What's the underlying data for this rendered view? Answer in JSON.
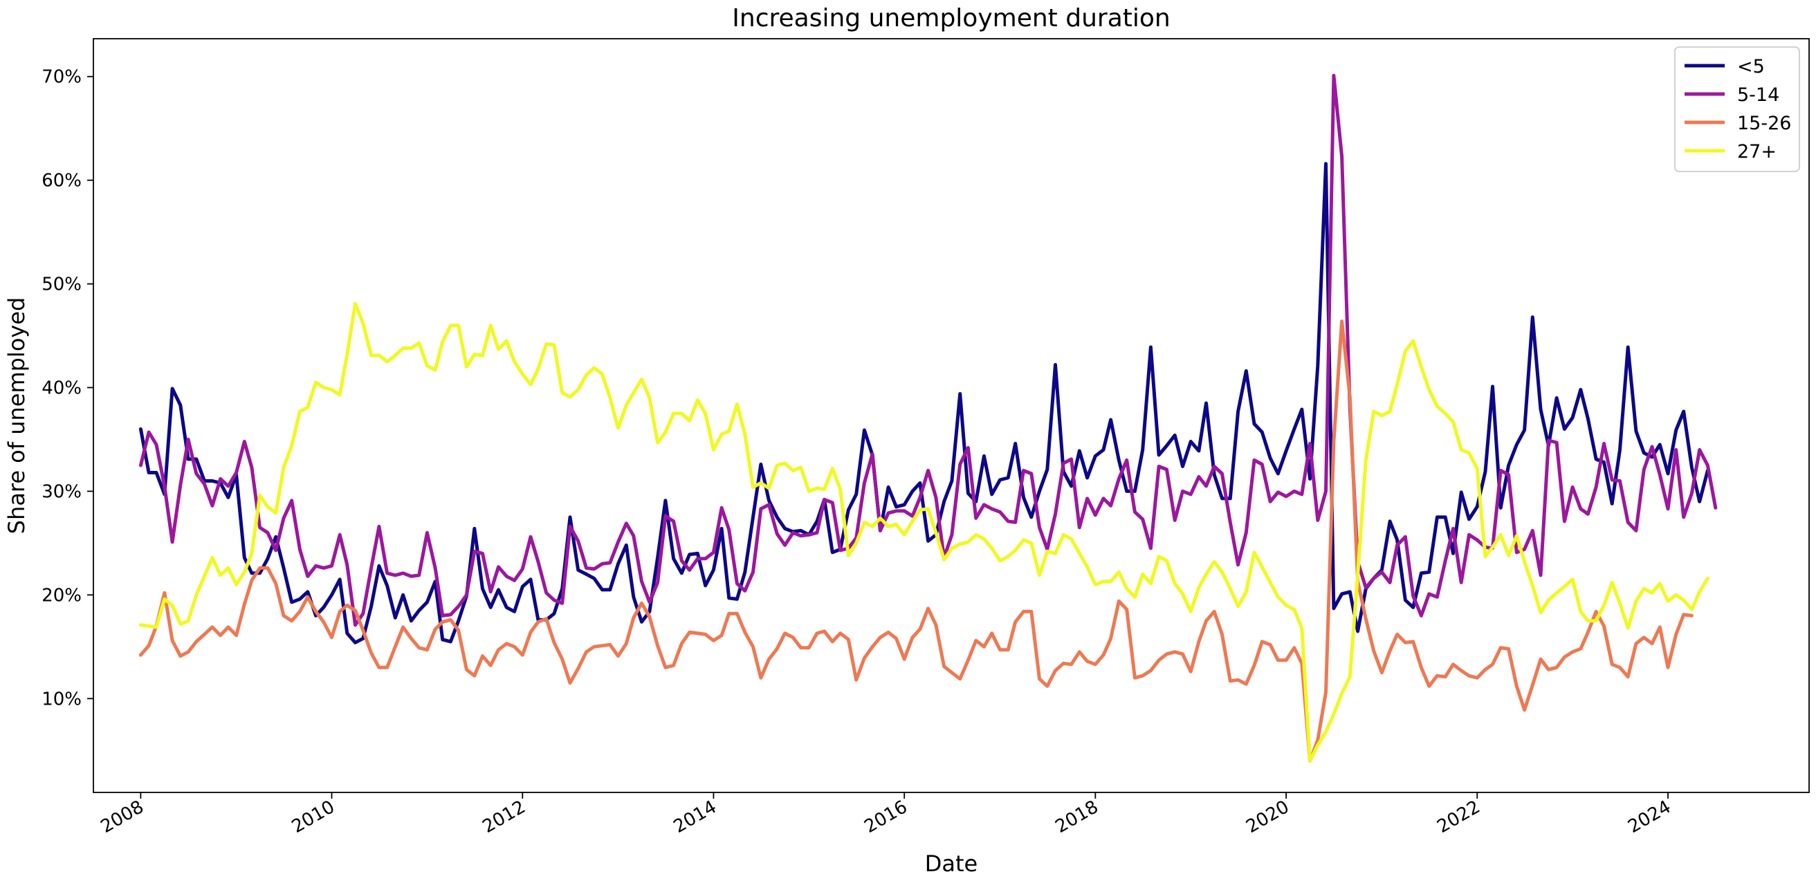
{
  "chart_data": {
    "type": "line",
    "title": "Increasing unemployment duration",
    "xlabel": "Date",
    "ylabel": "Share of unemployed",
    "x_range": [
      "2007-07-04",
      "2025-06-24"
    ],
    "x_ticks": [
      "2008-01-01",
      "2010-01-01",
      "2012-01-01",
      "2014-01-01",
      "2016-01-01",
      "2018-01-01",
      "2020-01-01",
      "2022-01-01",
      "2024-01-01"
    ],
    "x_tick_labels": [
      "2008",
      "2010",
      "2012",
      "2014",
      "2016",
      "2018",
      "2020",
      "2022",
      "2024"
    ],
    "ylim": [
      0.0095,
      0.7365
    ],
    "y_ticks": [
      0.1,
      0.2,
      0.3,
      0.4,
      0.5,
      0.6,
      0.7
    ],
    "y_tick_labels": [
      "10%",
      "20%",
      "30%",
      "40%",
      "50%",
      "60%",
      "70%"
    ],
    "grid": false,
    "legend_position": "top-right",
    "x_start": "2008-01",
    "x_frequency": "monthly",
    "series": [
      {
        "name": "<5",
        "color": "#0d0887",
        "values": [
          0.36,
          0.318,
          0.318,
          0.297,
          0.399,
          0.383,
          0.331,
          0.331,
          0.31,
          0.31,
          0.308,
          0.294,
          0.316,
          0.236,
          0.221,
          0.221,
          0.235,
          0.256,
          0.226,
          0.193,
          0.196,
          0.203,
          0.18,
          0.188,
          0.2,
          0.215,
          0.163,
          0.154,
          0.158,
          0.189,
          0.228,
          0.209,
          0.178,
          0.2,
          0.175,
          0.185,
          0.193,
          0.213,
          0.157,
          0.155,
          0.175,
          0.199,
          0.264,
          0.206,
          0.188,
          0.205,
          0.188,
          0.184,
          0.208,
          0.215,
          0.176,
          0.176,
          0.182,
          0.206,
          0.275,
          0.224,
          0.22,
          0.216,
          0.205,
          0.205,
          0.23,
          0.248,
          0.198,
          0.174,
          0.184,
          0.236,
          0.291,
          0.235,
          0.221,
          0.239,
          0.24,
          0.209,
          0.224,
          0.264,
          0.197,
          0.196,
          0.222,
          0.275,
          0.326,
          0.291,
          0.275,
          0.264,
          0.261,
          0.262,
          0.258,
          0.271,
          0.292,
          0.241,
          0.244,
          0.282,
          0.297,
          0.359,
          0.335,
          0.262,
          0.304,
          0.285,
          0.287,
          0.3,
          0.308,
          0.252,
          0.258,
          0.29,
          0.31,
          0.394,
          0.298,
          0.29,
          0.334,
          0.297,
          0.311,
          0.313,
          0.346,
          0.294,
          0.275,
          0.3,
          0.321,
          0.422,
          0.319,
          0.305,
          0.339,
          0.313,
          0.334,
          0.34,
          0.369,
          0.33,
          0.3,
          0.3,
          0.34,
          0.439,
          0.335,
          0.344,
          0.354,
          0.324,
          0.348,
          0.339,
          0.385,
          0.316,
          0.293,
          0.293,
          0.377,
          0.416,
          0.365,
          0.357,
          0.332,
          0.317,
          0.339,
          0.36,
          0.379,
          0.312,
          0.421,
          0.616,
          0.187,
          0.201,
          0.203,
          0.165,
          0.206,
          0.216,
          0.224,
          0.271,
          0.253,
          0.195,
          0.188,
          0.221,
          0.222,
          0.275,
          0.275,
          0.24,
          0.299,
          0.273,
          0.285,
          0.319,
          0.401,
          0.284,
          0.325,
          0.345,
          0.359,
          0.468,
          0.379,
          0.344,
          0.39,
          0.36,
          0.371,
          0.398,
          0.37,
          0.331,
          0.328,
          0.288,
          0.34,
          0.439,
          0.358,
          0.337,
          0.333,
          0.345,
          0.317,
          0.359,
          0.377,
          0.323,
          0.29,
          0.32
        ]
      },
      {
        "name": "5-14",
        "color": "#9c179e",
        "values": [
          0.325,
          0.357,
          0.345,
          0.305,
          0.251,
          0.306,
          0.35,
          0.317,
          0.307,
          0.286,
          0.312,
          0.305,
          0.318,
          0.348,
          0.323,
          0.265,
          0.26,
          0.243,
          0.274,
          0.291,
          0.244,
          0.218,
          0.228,
          0.226,
          0.228,
          0.258,
          0.229,
          0.171,
          0.182,
          0.226,
          0.266,
          0.221,
          0.219,
          0.221,
          0.218,
          0.219,
          0.26,
          0.226,
          0.18,
          0.181,
          0.189,
          0.2,
          0.242,
          0.24,
          0.203,
          0.227,
          0.218,
          0.214,
          0.225,
          0.256,
          0.232,
          0.202,
          0.195,
          0.192,
          0.266,
          0.252,
          0.226,
          0.225,
          0.23,
          0.231,
          0.251,
          0.269,
          0.257,
          0.213,
          0.193,
          0.212,
          0.276,
          0.271,
          0.233,
          0.224,
          0.235,
          0.235,
          0.241,
          0.284,
          0.263,
          0.211,
          0.204,
          0.222,
          0.283,
          0.287,
          0.259,
          0.248,
          0.26,
          0.257,
          0.258,
          0.26,
          0.292,
          0.289,
          0.243,
          0.245,
          0.255,
          0.308,
          0.336,
          0.262,
          0.279,
          0.281,
          0.281,
          0.276,
          0.294,
          0.32,
          0.294,
          0.236,
          0.258,
          0.326,
          0.342,
          0.274,
          0.287,
          0.283,
          0.28,
          0.271,
          0.27,
          0.32,
          0.317,
          0.265,
          0.244,
          0.278,
          0.327,
          0.331,
          0.265,
          0.293,
          0.277,
          0.293,
          0.286,
          0.312,
          0.33,
          0.28,
          0.273,
          0.245,
          0.324,
          0.321,
          0.272,
          0.3,
          0.297,
          0.314,
          0.305,
          0.324,
          0.317,
          0.27,
          0.229,
          0.26,
          0.33,
          0.326,
          0.29,
          0.299,
          0.295,
          0.3,
          0.297,
          0.346,
          0.272,
          0.3,
          0.701,
          0.623,
          0.38,
          0.232,
          0.207,
          0.216,
          0.222,
          0.212,
          0.248,
          0.256,
          0.199,
          0.18,
          0.201,
          0.198,
          0.233,
          0.264,
          0.212,
          0.258,
          0.253,
          0.246,
          0.245,
          0.32,
          0.316,
          0.241,
          0.244,
          0.262,
          0.219,
          0.349,
          0.347,
          0.271,
          0.304,
          0.283,
          0.278,
          0.304,
          0.346,
          0.311,
          0.31,
          0.27,
          0.262,
          0.321,
          0.343,
          0.316,
          0.283,
          0.34,
          0.275,
          0.298,
          0.34,
          0.325,
          0.284
        ]
      },
      {
        "name": "15-26",
        "color": "#ed7953",
        "values": [
          0.142,
          0.151,
          0.17,
          0.202,
          0.156,
          0.141,
          0.145,
          0.155,
          0.162,
          0.169,
          0.161,
          0.169,
          0.161,
          0.191,
          0.214,
          0.226,
          0.226,
          0.211,
          0.18,
          0.175,
          0.184,
          0.198,
          0.184,
          0.174,
          0.159,
          0.184,
          0.19,
          0.185,
          0.166,
          0.144,
          0.13,
          0.13,
          0.15,
          0.169,
          0.158,
          0.149,
          0.147,
          0.167,
          0.174,
          0.176,
          0.166,
          0.128,
          0.122,
          0.141,
          0.132,
          0.147,
          0.153,
          0.15,
          0.142,
          0.164,
          0.174,
          0.177,
          0.154,
          0.138,
          0.115,
          0.129,
          0.145,
          0.15,
          0.151,
          0.152,
          0.141,
          0.153,
          0.178,
          0.192,
          0.179,
          0.151,
          0.13,
          0.132,
          0.153,
          0.164,
          0.163,
          0.162,
          0.156,
          0.161,
          0.182,
          0.182,
          0.164,
          0.15,
          0.12,
          0.138,
          0.148,
          0.163,
          0.159,
          0.149,
          0.149,
          0.163,
          0.165,
          0.155,
          0.163,
          0.157,
          0.118,
          0.139,
          0.15,
          0.159,
          0.164,
          0.158,
          0.138,
          0.159,
          0.167,
          0.187,
          0.171,
          0.131,
          0.125,
          0.119,
          0.137,
          0.156,
          0.15,
          0.163,
          0.147,
          0.147,
          0.174,
          0.184,
          0.184,
          0.119,
          0.112,
          0.127,
          0.134,
          0.133,
          0.145,
          0.136,
          0.133,
          0.142,
          0.158,
          0.194,
          0.186,
          0.12,
          0.122,
          0.127,
          0.137,
          0.143,
          0.145,
          0.143,
          0.126,
          0.155,
          0.175,
          0.184,
          0.162,
          0.117,
          0.118,
          0.114,
          0.132,
          0.155,
          0.152,
          0.137,
          0.137,
          0.149,
          0.134,
          0.04,
          0.06,
          0.106,
          0.348,
          0.464,
          0.391,
          0.213,
          0.177,
          0.146,
          0.125,
          0.146,
          0.162,
          0.154,
          0.155,
          0.13,
          0.112,
          0.122,
          0.121,
          0.133,
          0.127,
          0.122,
          0.12,
          0.128,
          0.133,
          0.149,
          0.148,
          0.112,
          0.089,
          0.113,
          0.138,
          0.128,
          0.13,
          0.14,
          0.145,
          0.148,
          0.164,
          0.184,
          0.17,
          0.133,
          0.13,
          0.121,
          0.153,
          0.159,
          0.153,
          0.169,
          0.13,
          0.162,
          0.181,
          0.18
        ]
      },
      {
        "name": "27+",
        "color": "#f0f921",
        "values": [
          0.171,
          0.17,
          0.169,
          0.196,
          0.19,
          0.172,
          0.175,
          0.2,
          0.218,
          0.236,
          0.219,
          0.226,
          0.21,
          0.222,
          0.24,
          0.296,
          0.285,
          0.279,
          0.323,
          0.344,
          0.377,
          0.381,
          0.405,
          0.4,
          0.398,
          0.393,
          0.432,
          0.481,
          0.462,
          0.431,
          0.431,
          0.425,
          0.431,
          0.438,
          0.438,
          0.443,
          0.421,
          0.417,
          0.444,
          0.46,
          0.46,
          0.42,
          0.432,
          0.431,
          0.46,
          0.437,
          0.445,
          0.425,
          0.413,
          0.403,
          0.418,
          0.442,
          0.441,
          0.395,
          0.391,
          0.398,
          0.412,
          0.419,
          0.413,
          0.39,
          0.361,
          0.383,
          0.395,
          0.408,
          0.39,
          0.347,
          0.357,
          0.375,
          0.375,
          0.368,
          0.388,
          0.375,
          0.34,
          0.355,
          0.358,
          0.384,
          0.355,
          0.304,
          0.308,
          0.303,
          0.325,
          0.327,
          0.32,
          0.323,
          0.3,
          0.303,
          0.302,
          0.322,
          0.302,
          0.238,
          0.25,
          0.27,
          0.266,
          0.274,
          0.266,
          0.268,
          0.258,
          0.271,
          0.282,
          0.283,
          0.26,
          0.234,
          0.245,
          0.249,
          0.251,
          0.258,
          0.254,
          0.245,
          0.233,
          0.237,
          0.243,
          0.253,
          0.25,
          0.219,
          0.242,
          0.24,
          0.258,
          0.254,
          0.24,
          0.227,
          0.21,
          0.213,
          0.213,
          0.222,
          0.206,
          0.198,
          0.22,
          0.211,
          0.237,
          0.233,
          0.211,
          0.201,
          0.184,
          0.207,
          0.22,
          0.232,
          0.222,
          0.206,
          0.189,
          0.203,
          0.241,
          0.227,
          0.212,
          0.198,
          0.19,
          0.186,
          0.168,
          0.04,
          0.055,
          0.068,
          0.085,
          0.105,
          0.121,
          0.22,
          0.33,
          0.377,
          0.373,
          0.377,
          0.403,
          0.435,
          0.445,
          0.42,
          0.398,
          0.382,
          0.375,
          0.367,
          0.34,
          0.337,
          0.322,
          0.237,
          0.246,
          0.258,
          0.238,
          0.257,
          0.232,
          0.209,
          0.183,
          0.195,
          0.202,
          0.208,
          0.215,
          0.184,
          0.175,
          0.175,
          0.19,
          0.212,
          0.192,
          0.168,
          0.194,
          0.206,
          0.202,
          0.211,
          0.194,
          0.2,
          0.195,
          0.186,
          0.203,
          0.216
        ]
      }
    ]
  }
}
